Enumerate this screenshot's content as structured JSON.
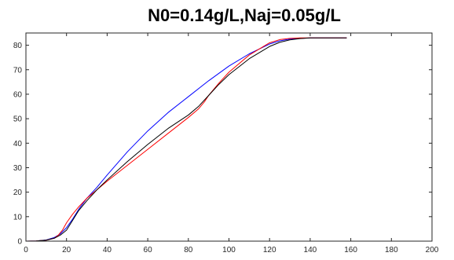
{
  "chart_data": {
    "type": "line",
    "title": "N0=0.14g/L,Naj=0.05g/L",
    "xlabel": "",
    "ylabel": "",
    "xlim": [
      0,
      200
    ],
    "ylim": [
      0,
      85
    ],
    "xticks": [
      0,
      20,
      40,
      60,
      80,
      100,
      120,
      140,
      160,
      180,
      200
    ],
    "yticks": [
      0,
      10,
      20,
      30,
      40,
      50,
      60,
      70,
      80
    ],
    "grid": false,
    "legend": "none",
    "series": [
      {
        "color": "#0000ff",
        "x": [
          0,
          5,
          10,
          14,
          17,
          20,
          23,
          26,
          30,
          35,
          40,
          50,
          60,
          70,
          80,
          90,
          100,
          110,
          120,
          125,
          130,
          135,
          140,
          145,
          150,
          158
        ],
        "y": [
          0,
          0.1,
          0.5,
          1.5,
          3,
          5.5,
          9,
          13,
          17.5,
          22,
          27,
          36.5,
          45,
          52.5,
          59,
          65.5,
          71.5,
          76.5,
          80.5,
          81.8,
          82.5,
          82.8,
          83,
          83,
          83,
          83
        ]
      },
      {
        "color": "#ff0000",
        "x": [
          0,
          5,
          10,
          14,
          16,
          18,
          20,
          23,
          26,
          30,
          35,
          40,
          50,
          60,
          70,
          80,
          85,
          88,
          90,
          95,
          100,
          110,
          120,
          125,
          130,
          135,
          140,
          150,
          158
        ],
        "y": [
          0,
          0.1,
          0.4,
          1.2,
          2.5,
          4.5,
          7.5,
          11,
          14,
          17.5,
          21,
          24.5,
          31,
          37.5,
          44,
          50.5,
          54,
          57,
          59.5,
          64.5,
          69,
          76,
          81,
          82.3,
          82.8,
          83,
          83,
          83,
          83
        ]
      },
      {
        "color": "#000000",
        "x": [
          0,
          5,
          10,
          14,
          17,
          20,
          23,
          26,
          30,
          35,
          40,
          50,
          60,
          70,
          80,
          85,
          90,
          95,
          100,
          110,
          120,
          125,
          130,
          135,
          140,
          150,
          158
        ],
        "y": [
          0,
          0.1,
          0.4,
          1.2,
          2.5,
          4.5,
          8.5,
          12.5,
          16.5,
          21,
          25,
          32.5,
          39.5,
          46,
          51.5,
          55,
          59.5,
          64,
          68,
          74.5,
          79.5,
          81.2,
          82.2,
          82.7,
          83,
          83,
          83
        ]
      }
    ]
  }
}
